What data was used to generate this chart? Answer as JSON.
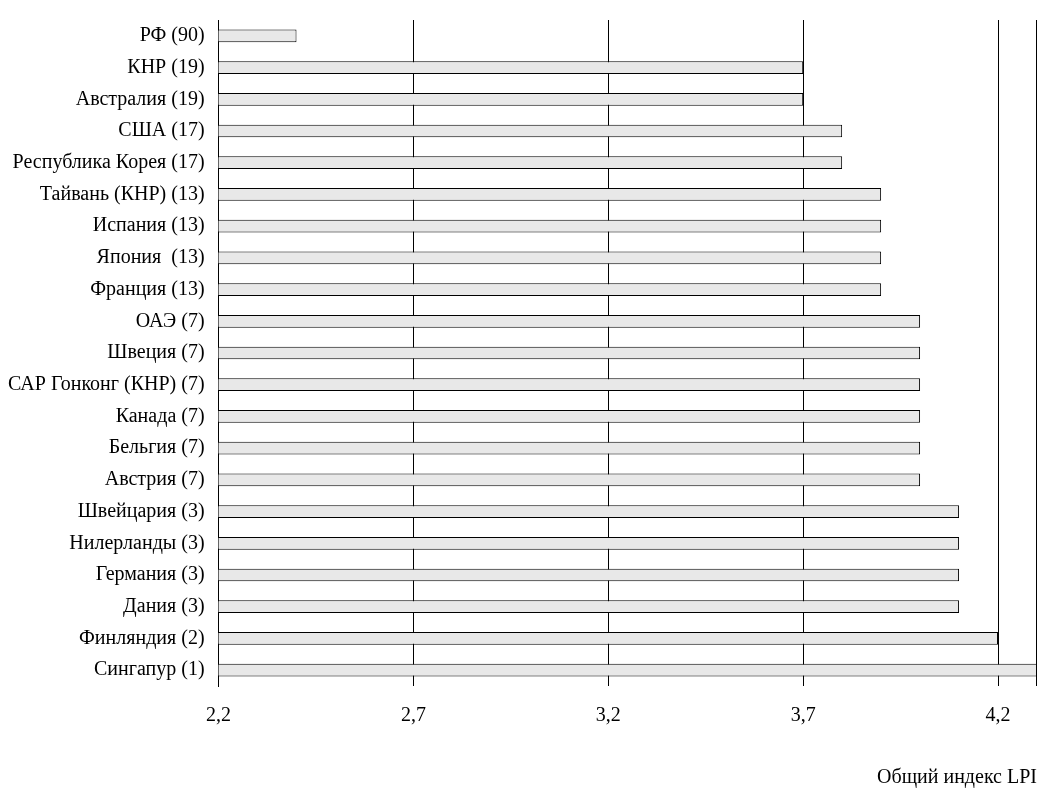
{
  "chart_data": {
    "type": "bar",
    "orientation": "horizontal",
    "xlabel": "Общий индекс LPI",
    "categories": [
      "РФ (90)",
      "КНР (19)",
      "Австралия (19)",
      "США (17)",
      "Республика Корея (17)",
      "Тайвань (КНР) (13)",
      "Испания (13)",
      "Япония  (13)",
      "Франция (13)",
      "ОАЭ (7)",
      "Швеция (7)",
      "САР Гонконг (КНР) (7)",
      "Канада (7)",
      "Бельгия (7)",
      "Австрия (7)",
      "Швейцария (3)",
      "Нилерланды (3)",
      "Германия (3)",
      "Дания (3)",
      "Финляндия (2)",
      "Сингапур (1)"
    ],
    "values": [
      2.4,
      3.7,
      3.7,
      3.8,
      3.8,
      3.9,
      3.9,
      3.9,
      3.9,
      4.0,
      4.0,
      4.0,
      4.0,
      4.0,
      4.0,
      4.1,
      4.1,
      4.1,
      4.1,
      4.2,
      4.3
    ],
    "color": "#e8e8e8",
    "xlim": [
      2.2,
      4.3
    ],
    "xticks": [
      {
        "value": 2.2,
        "label": "2,2"
      },
      {
        "value": 2.7,
        "label": "2,7"
      },
      {
        "value": 3.2,
        "label": "3,2"
      },
      {
        "value": 3.7,
        "label": "3,7"
      },
      {
        "value": 4.2,
        "label": "4,2"
      }
    ],
    "grid": "x",
    "legend": false
  }
}
